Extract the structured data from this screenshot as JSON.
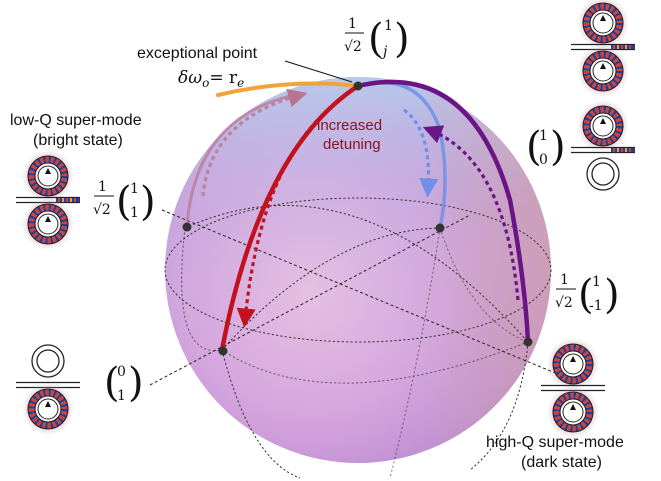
{
  "labels": {
    "exceptional_point": "exceptional point",
    "ep_condition": "δω",
    "ep_condition_sub": "o",
    "ep_condition_rhs": "= r",
    "ep_condition_rhs_sub": "e",
    "increased": "increased",
    "detuning": "detuning",
    "low_q_title": "low-Q super-mode",
    "low_q_sub": "(bright state)",
    "high_q_title": "high-Q super-mode",
    "high_q_sub": "(dark state)"
  },
  "states": {
    "top": {
      "prefactor_num": "1",
      "prefactor_den": "√2",
      "v1": "1",
      "v2": "j"
    },
    "right_upper": {
      "v1": "1",
      "v2": "0"
    },
    "left_bright": {
      "prefactor_num": "1",
      "prefactor_den": "√2",
      "v1": "1",
      "v2": "1"
    },
    "right_dark": {
      "prefactor_num": "1",
      "prefactor_den": "√2",
      "v1": "1",
      "v2": "-1"
    },
    "left_bottom": {
      "v1": "0",
      "v2": "1"
    }
  },
  "colors": {
    "red_path": "#c2121f",
    "purple_path": "#6b1485",
    "blue_path": "#6f8fe8",
    "orange_path": "#f2a23a",
    "mode_red": "#e03a2a",
    "mode_blue": "#1f3f9e",
    "mode_orange": "#f0a030"
  }
}
